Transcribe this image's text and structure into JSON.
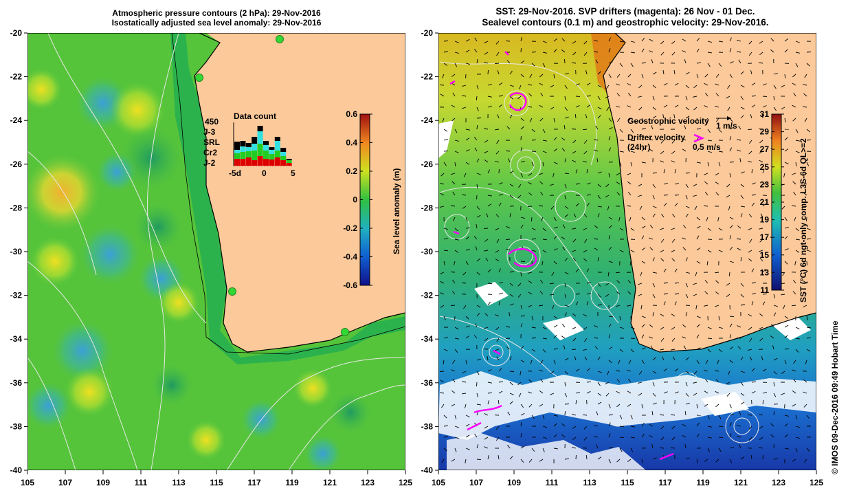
{
  "left_panel": {
    "title_line1": "Atmospheric pressure contours (2 hPa): 29-Nov-2016",
    "title_line2": "Isostatically adjusted sea level anomaly: 29-Nov-2016",
    "lat_ticks": [
      "-20",
      "-22",
      "-24",
      "-26",
      "-28",
      "-30",
      "-32",
      "-34",
      "-36",
      "-38",
      "-40"
    ],
    "lon_ticks": [
      "105",
      "107",
      "109",
      "111",
      "113",
      "115",
      "117",
      "119",
      "121",
      "123",
      "125"
    ],
    "data_count": {
      "title": "Data count",
      "max_label": "450",
      "legend": [
        {
          "label": "J-3",
          "color": "#000000"
        },
        {
          "label": "SRL",
          "color": "#33e0e0"
        },
        {
          "label": "Cr2",
          "color": "#22cc22"
        },
        {
          "label": "J-2",
          "color": "#dd0000"
        }
      ],
      "axis_labels": [
        "-5d",
        "0",
        "5"
      ]
    },
    "colorbar": {
      "label": "Sea level anomaly (m)",
      "ticks": [
        "0.6",
        "0.4",
        "0.2",
        "0",
        "-0.2",
        "-0.4",
        "-0.6"
      ]
    }
  },
  "right_panel": {
    "title_line1": "SST: 29-Nov-2016. SVP drifters (magenta): 26 Nov - 01 Dec.",
    "title_line2": "Sealevel contours (0.1 m) and geostrophic velocity: 29-Nov-2016.",
    "lat_ticks": [
      "-20",
      "-22",
      "-24",
      "-26",
      "-28",
      "-30",
      "-32",
      "-34",
      "-36",
      "-38",
      "-40"
    ],
    "lon_ticks": [
      "105",
      "107",
      "109",
      "111",
      "113",
      "115",
      "117",
      "119",
      "121",
      "123",
      "125"
    ],
    "legend": {
      "geostrophic_label": "Geostrophic velocity",
      "geostrophic_scale": "1 m/s",
      "drifter_label": "Drifter velocity",
      "drifter_sub": "(24hr)",
      "drifter_scale": "0.5 m/s",
      "drifter_color": "#ff00ff"
    },
    "colorbar": {
      "label": "SST (°C) 6d ngt-only comp. L3S-6d QL>=2",
      "ticks": [
        "31",
        "29",
        "27",
        "25",
        "23",
        "21",
        "19",
        "17",
        "15",
        "13",
        "11"
      ]
    }
  },
  "credit": "© IMOS 09-Dec-2016 09:49 Hobart Time",
  "colors": {
    "land": "#fbc99a",
    "sla_low": "#1a1aa0",
    "sla_zero": "#3cc43c",
    "sla_high": "#b02010",
    "sst_low": "#10207a",
    "sst_high": "#a01808"
  }
}
